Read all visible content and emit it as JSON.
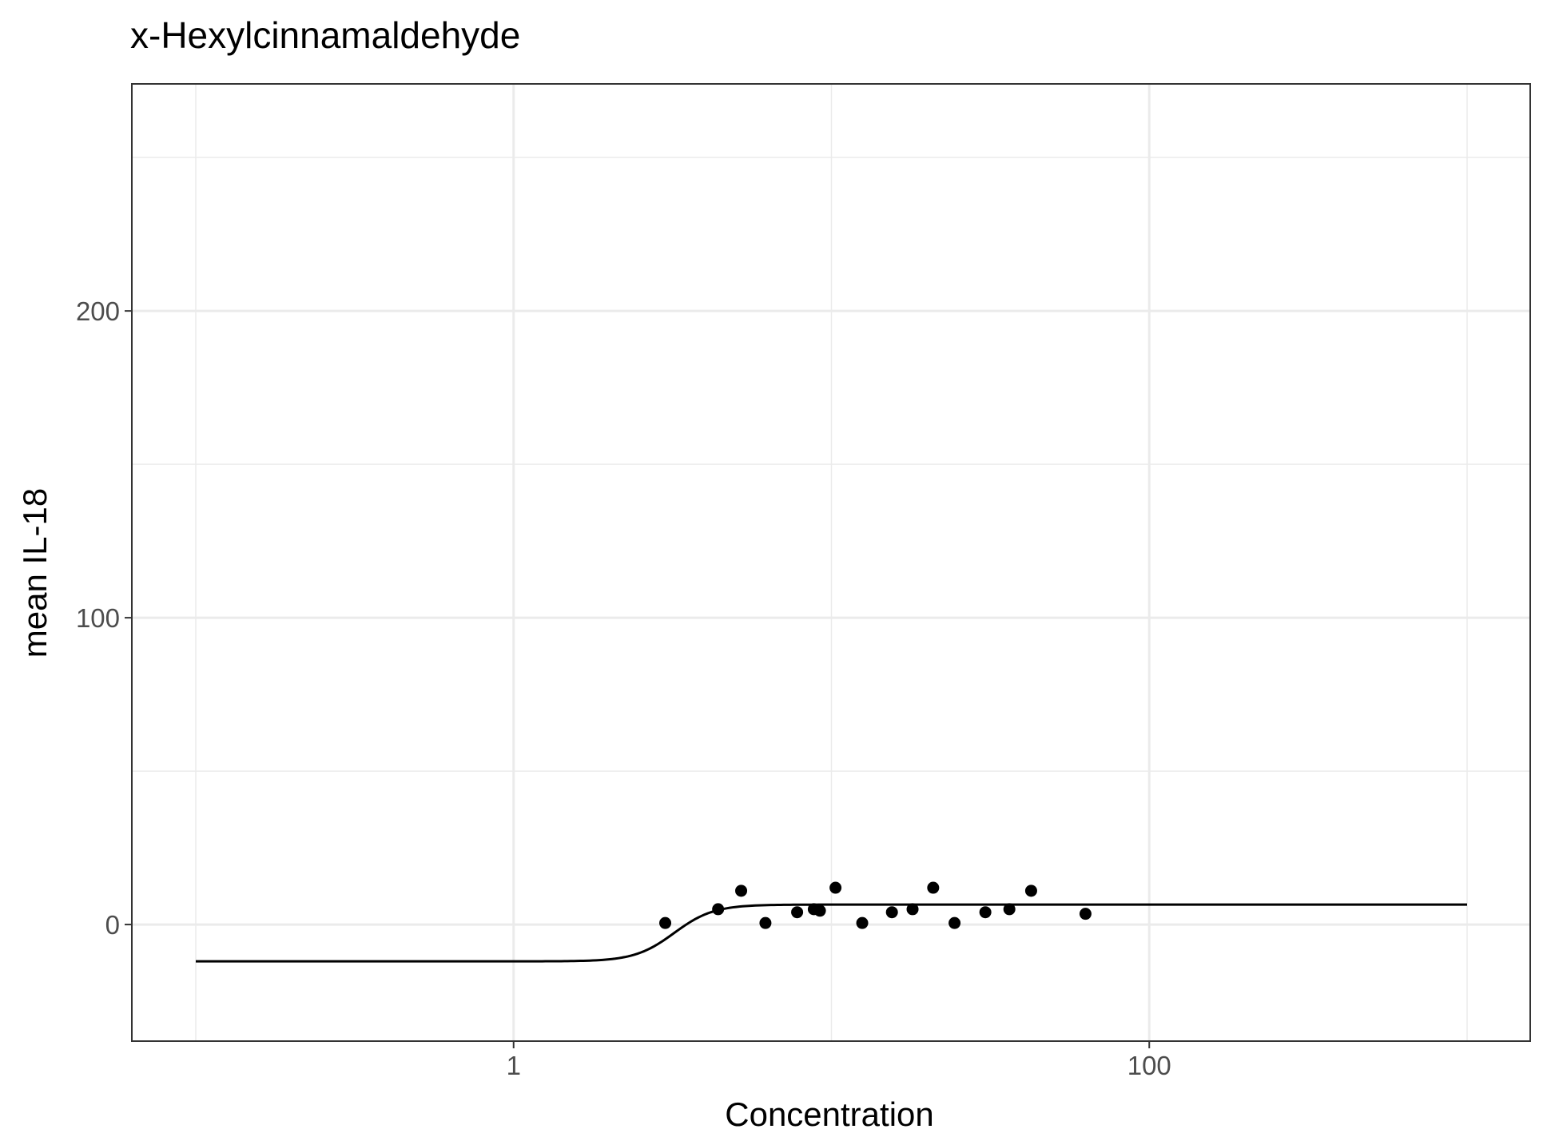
{
  "chart_data": {
    "type": "scatter",
    "title": "x-Hexylcinnamaldehyde",
    "xlabel": "Concentration",
    "ylabel": "mean IL-18",
    "x_scale": "log10",
    "xlim": [
      0.1,
      1000
    ],
    "ylim": [
      -38,
      274
    ],
    "x_ticks": [
      {
        "value": 1,
        "label": "1"
      },
      {
        "value": 100,
        "label": "100"
      }
    ],
    "y_ticks": [
      {
        "value": 0,
        "label": "0"
      },
      {
        "value": 100,
        "label": "100"
      },
      {
        "value": 200,
        "label": "200"
      }
    ],
    "x_minor_ticks": [
      0.1,
      10,
      1000
    ],
    "y_minor_ticks": [
      50,
      150,
      250
    ],
    "grid": true,
    "legend": "none",
    "colors": {
      "points": "#000000",
      "curve": "#000000",
      "grid": "#ebebeb",
      "panel_border": "#333333"
    },
    "series": [
      {
        "type": "scatter",
        "x": [
          3.0,
          4.4,
          5.2,
          6.2,
          7.8,
          8.8,
          9.2,
          10.3,
          12.5,
          15.5,
          18.0,
          20.9,
          24.4,
          30.5,
          36.3,
          42.5,
          63.0
        ],
        "y": [
          0.5,
          5,
          11,
          0.5,
          4,
          5,
          4.5,
          12,
          0.5,
          4,
          5,
          12,
          0.5,
          4,
          5,
          11,
          3.5
        ]
      },
      {
        "type": "line",
        "model": "logistic",
        "bottom": -12,
        "top": 6.5,
        "ec50": 3.2,
        "hill": 7,
        "x_range": [
          0.1,
          1000
        ]
      }
    ]
  }
}
